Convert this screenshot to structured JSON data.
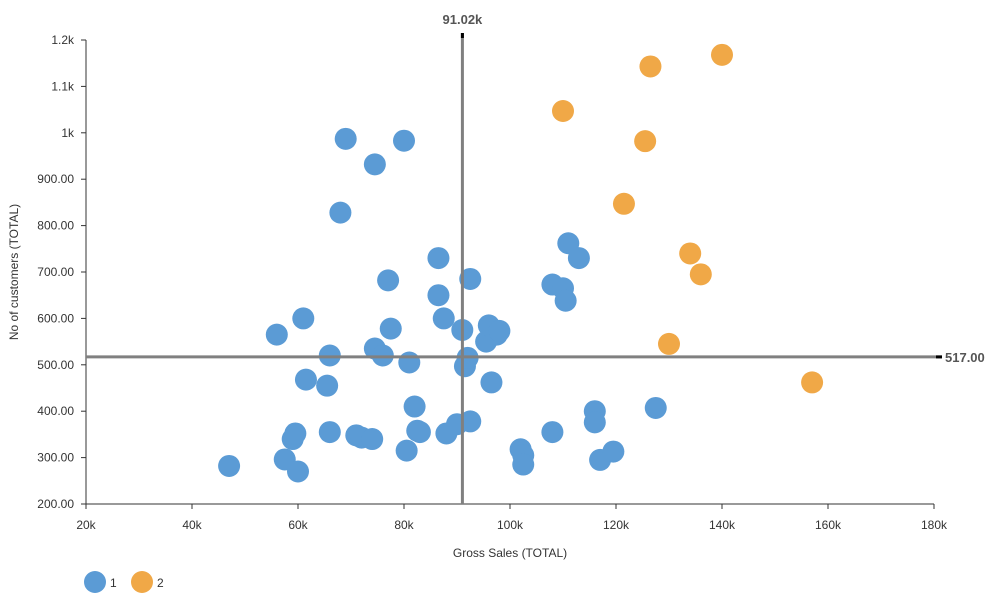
{
  "chart_data": {
    "type": "scatter",
    "xlabel": "Gross Sales (TOTAL)",
    "ylabel": "No of customers (TOTAL)",
    "xlim": [
      20000,
      180000
    ],
    "ylim": [
      200,
      1200
    ],
    "x_ticks": [
      "20k",
      "40k",
      "60k",
      "80k",
      "100k",
      "120k",
      "140k",
      "160k",
      "180k"
    ],
    "y_ticks": [
      "200.00",
      "300.00",
      "400.00",
      "500.00",
      "600.00",
      "700.00",
      "800.00",
      "900.00",
      "1k",
      "1.1k",
      "1.2k"
    ],
    "grid": false,
    "legend_position": "bottom-left",
    "reference_lines": {
      "x": {
        "value": 91020,
        "label": "91.02k"
      },
      "y": {
        "value": 517,
        "label": "517.00"
      }
    },
    "series": [
      {
        "name": "1",
        "color": "#5b9bd5",
        "points": [
          [
            47000,
            282
          ],
          [
            56000,
            565
          ],
          [
            57500,
            296
          ],
          [
            59000,
            340
          ],
          [
            59500,
            352
          ],
          [
            60000,
            270
          ],
          [
            61000,
            600
          ],
          [
            61500,
            468
          ],
          [
            65500,
            455
          ],
          [
            66000,
            355
          ],
          [
            66000,
            520
          ],
          [
            68000,
            828
          ],
          [
            69000,
            987
          ],
          [
            71000,
            348
          ],
          [
            72000,
            343
          ],
          [
            74000,
            340
          ],
          [
            74500,
            535
          ],
          [
            74500,
            932
          ],
          [
            76000,
            520
          ],
          [
            77000,
            682
          ],
          [
            77500,
            578
          ],
          [
            80000,
            983
          ],
          [
            80500,
            315
          ],
          [
            81000,
            505
          ],
          [
            82000,
            410
          ],
          [
            82500,
            358
          ],
          [
            83000,
            355
          ],
          [
            86500,
            730
          ],
          [
            86500,
            650
          ],
          [
            87500,
            600
          ],
          [
            88000,
            352
          ],
          [
            90000,
            372
          ],
          [
            91000,
            575
          ],
          [
            91500,
            497
          ],
          [
            92000,
            515
          ],
          [
            92500,
            685
          ],
          [
            92500,
            378
          ],
          [
            95500,
            550
          ],
          [
            96000,
            585
          ],
          [
            96500,
            462
          ],
          [
            97500,
            565
          ],
          [
            98000,
            573
          ],
          [
            102000,
            318
          ],
          [
            102500,
            305
          ],
          [
            102500,
            285
          ],
          [
            108000,
            355
          ],
          [
            108000,
            673
          ],
          [
            110000,
            665
          ],
          [
            110500,
            638
          ],
          [
            111000,
            762
          ],
          [
            113000,
            730
          ],
          [
            116000,
            400
          ],
          [
            116000,
            376
          ],
          [
            117000,
            295
          ],
          [
            119500,
            313
          ],
          [
            127500,
            407
          ]
        ]
      },
      {
        "name": "2",
        "color": "#f0a847",
        "points": [
          [
            110000,
            1047
          ],
          [
            121500,
            847
          ],
          [
            125500,
            982
          ],
          [
            126500,
            1143
          ],
          [
            130000,
            545
          ],
          [
            134000,
            740
          ],
          [
            136000,
            695
          ],
          [
            140000,
            1168
          ],
          [
            157000,
            462
          ]
        ]
      }
    ]
  }
}
